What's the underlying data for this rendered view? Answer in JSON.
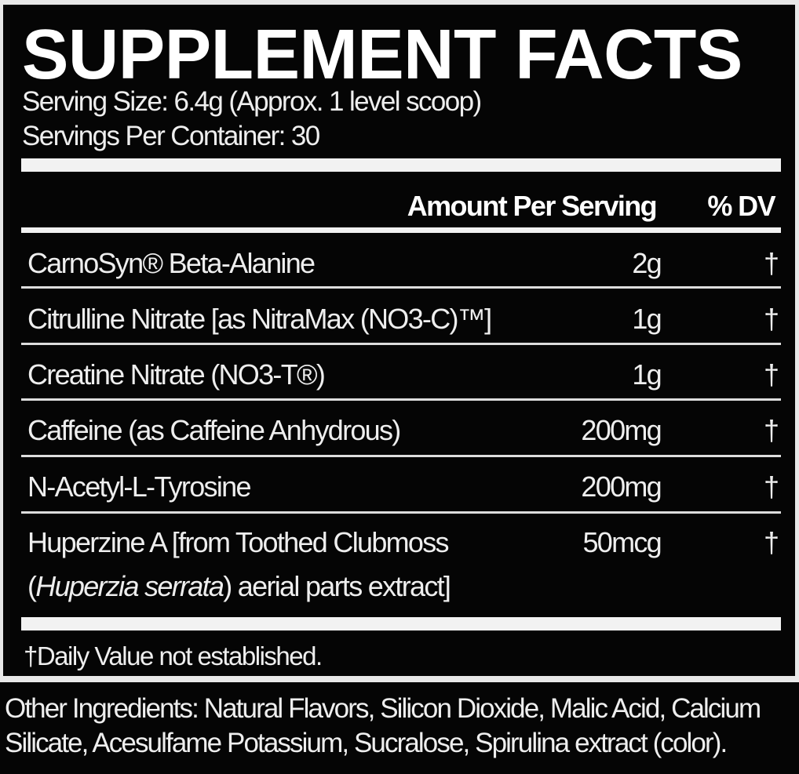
{
  "title": "SUPPLEMENT FACTS",
  "serving_size": "Serving Size: 6.4g (Approx. 1 level scoop)",
  "servings_per_container": "Servings Per Container: 30",
  "header": {
    "amount": "Amount Per Serving",
    "dv": "% DV"
  },
  "rows": [
    {
      "name": "CarnoSyn® Beta-Alanine",
      "amount": "2g",
      "dv": "†"
    },
    {
      "name": "Citrulline Nitrate [as NitraMax (NO3-C)™]",
      "amount": "1g",
      "dv": "†"
    },
    {
      "name": "Creatine Nitrate (NO3-T®)",
      "amount": "1g",
      "dv": "†"
    },
    {
      "name": "Caffeine (as Caffeine Anhydrous)",
      "amount": "200mg",
      "dv": "†"
    },
    {
      "name": "N-Acetyl-L-Tyrosine",
      "amount": "200mg",
      "dv": "†"
    },
    {
      "name": "Huperzine A [from Toothed Clubmoss",
      "name_line2_pre": "(",
      "name_line2_italic": "Huperzia serrata",
      "name_line2_post": ") aerial parts extract]",
      "amount": "50mcg",
      "dv": "†"
    }
  ],
  "footnote": "†Daily Value not established.",
  "other_ingredients": "Other Ingredients: Natural Flavors, Silicon Dioxide, Malic Acid, Calcium Silicate, Acesulfame Potassium, Sucralose, Spirulina extract (color).",
  "colors": {
    "background": "#050505",
    "text": "#ffffff",
    "frame": "#e8e8e8"
  }
}
